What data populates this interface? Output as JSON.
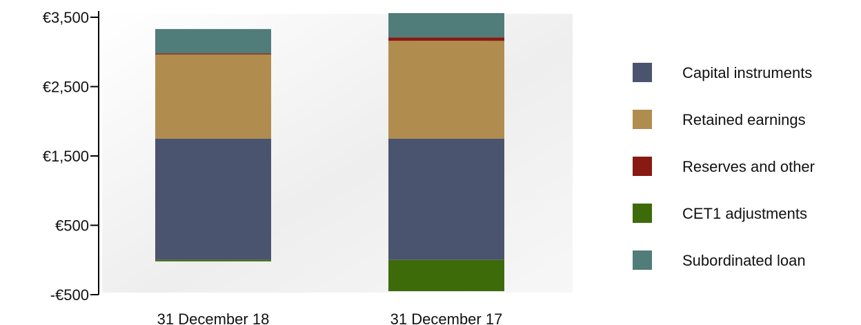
{
  "chart_data": {
    "type": "bar",
    "stacked": true,
    "categories": [
      "31 December 18",
      "31 December 17"
    ],
    "y_ticks": [
      {
        "value": 3500,
        "label": "€3,500"
      },
      {
        "value": 2500,
        "label": "€2,500"
      },
      {
        "value": 1500,
        "label": "€1,500"
      },
      {
        "value": 500,
        "label": "€500"
      },
      {
        "value": -500,
        "label": "-€500"
      }
    ],
    "ylim": [
      -500,
      3550
    ],
    "series": [
      {
        "name": "Capital instruments",
        "color": "#4a546e",
        "values": [
          1750,
          1750
        ]
      },
      {
        "name": "Retained earnings",
        "color": "#b08d4e",
        "values": [
          1220,
          1410
        ]
      },
      {
        "name": "Reserves and other",
        "color": "#871a12",
        "values": [
          10,
          50
        ]
      },
      {
        "name": "CET1 adjustments",
        "color": "#3d6b0a",
        "values": [
          -20,
          -450
        ]
      },
      {
        "name": "Subordinated loan",
        "color": "#507c79",
        "values": [
          350,
          350
        ]
      }
    ],
    "legend_position": "right",
    "grid": false
  }
}
